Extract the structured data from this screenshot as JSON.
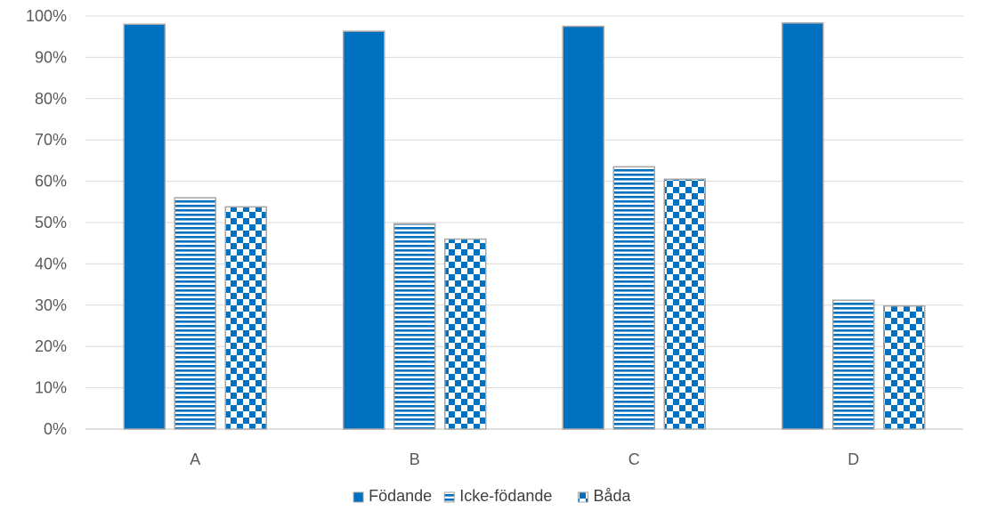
{
  "chart_data": {
    "type": "bar",
    "categories": [
      "A",
      "B",
      "C",
      "D"
    ],
    "series": [
      {
        "name": "Födande",
        "values": [
          98,
          96.3,
          97.5,
          98.3
        ],
        "pattern": "solid"
      },
      {
        "name": "Icke-födande",
        "values": [
          56,
          49.7,
          63.5,
          31.2
        ],
        "pattern": "horizontal-stripes"
      },
      {
        "name": "Båda",
        "values": [
          53.8,
          46,
          60.5,
          29.8
        ],
        "pattern": "checkerboard"
      }
    ],
    "y_ticks": [
      "0%",
      "10%",
      "20%",
      "30%",
      "40%",
      "50%",
      "60%",
      "70%",
      "80%",
      "90%",
      "100%"
    ],
    "ylim": [
      0,
      100
    ],
    "grid": true,
    "legend_position": "bottom",
    "colors": {
      "series": "#0070c0",
      "outline": "#a6a6a6",
      "grid": "#d9d9d9",
      "axis": "#bfbfbf"
    }
  }
}
